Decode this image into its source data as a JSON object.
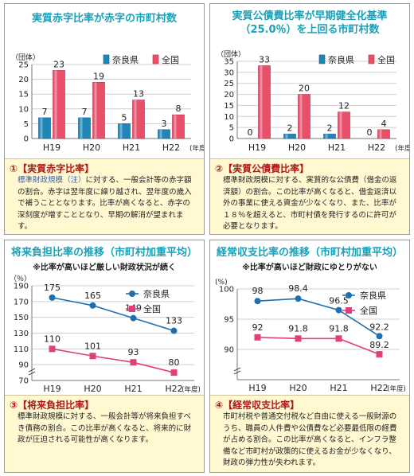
{
  "panels": [
    {
      "title": "実質赤字比率が赤字の市町村数",
      "desc_head": "①【実質赤字比率】",
      "desc_kw": "標準財政規模（注）",
      "desc_rest": "に対する、一般会計等の赤字額の割合。赤字は翌年度に繰り越され、翌年度の歳入で補うこととなります。比率が高くなると、赤字の深刻度が増すこととなり、早期の解消が望まれます。"
    },
    {
      "title": "実質公債費比率が早期健全化基準（25.0％）を上回る市町村数",
      "desc_head": "②【実質公債費比率】",
      "desc_kw": "",
      "desc_rest": "標準財政規模に対する、実質的な公債費（借金の返済額）の割合。この比率が高くなると、借金返済以外の事業に使える資金が少なくなり、また、比率が１８％を超えると、市町村債を発行するのに許可が必要となります。"
    },
    {
      "title": "将来負担比率の推移（市町村加重平均）",
      "note": "※比率が高いほど厳しい財政状況が続く",
      "desc_head": "③【将来負担比率】",
      "desc_kw": "",
      "desc_rest": "標準財政規模に対する、一般会計等が将来負担すべき債務の割合。この比率が高くなると、将来的に財政が圧迫される可能性が高くなります。"
    },
    {
      "title": "経常収支比率の推移（市町村加重平均）",
      "note": "※比率が高いほど財政にゆとりがない",
      "desc_head": "④【経常収支比率】",
      "desc_kw": "",
      "desc_rest": "市町村税や普通交付税など自由に使える一般財源のうち、職員の人件費や公債費など必要最低限の経費が占める割合。この比率が高くなると、インフラ整備など市町村が政策的に使えるお金が少なくなり、財政の弾力性が失われます。"
    }
  ],
  "colors": {
    "nara": "#1f86b8",
    "zenkoku": "#e8506a",
    "line_nara": "#1f6fae",
    "line_zenkoku": "#e0407a"
  },
  "chart_data": [
    {
      "type": "bar",
      "ylabel": "（団体）",
      "ylim": [
        0,
        25
      ],
      "yticks": [
        0,
        5,
        10,
        15,
        20,
        25
      ],
      "categories": [
        "H19",
        "H20",
        "H21",
        "H22"
      ],
      "xunit": "(年度)",
      "series": [
        {
          "name": "奈良県",
          "values": [
            7,
            7,
            5,
            3
          ]
        },
        {
          "name": "全国",
          "values": [
            23,
            19,
            13,
            8
          ]
        }
      ]
    },
    {
      "type": "bar",
      "ylabel": "（団体）",
      "ylim": [
        0,
        35
      ],
      "yticks": [
        0,
        5,
        10,
        15,
        20,
        25,
        30,
        35
      ],
      "categories": [
        "H19",
        "H20",
        "H21",
        "H22"
      ],
      "xunit": "(年度)",
      "series": [
        {
          "name": "奈良県",
          "values": [
            0,
            2,
            2,
            0
          ]
        },
        {
          "name": "全国",
          "values": [
            33,
            20,
            12,
            4
          ]
        }
      ]
    },
    {
      "type": "line",
      "ylabel": "（％）",
      "ylim": [
        70,
        190
      ],
      "yticks": [
        70,
        90,
        110,
        130,
        150,
        170,
        190
      ],
      "axis_break": true,
      "categories": [
        "H19",
        "H20",
        "H21",
        "H22"
      ],
      "xunit": "(年度)",
      "series": [
        {
          "name": "奈良県",
          "values": [
            175,
            165,
            149,
            133
          ]
        },
        {
          "name": "全国",
          "values": [
            110,
            101,
            93,
            80
          ]
        }
      ]
    },
    {
      "type": "line",
      "ylabel": "(%)",
      "ylim": [
        85,
        100
      ],
      "yticks": [
        90,
        95,
        100
      ],
      "axis_break": true,
      "categories": [
        "H19",
        "H20",
        "H21",
        "H22"
      ],
      "xunit": "(年度)",
      "series": [
        {
          "name": "奈良県",
          "values": [
            98.0,
            98.4,
            96.5,
            92.2
          ]
        },
        {
          "name": "全国",
          "values": [
            92.0,
            91.8,
            91.8,
            89.2
          ]
        }
      ]
    }
  ]
}
